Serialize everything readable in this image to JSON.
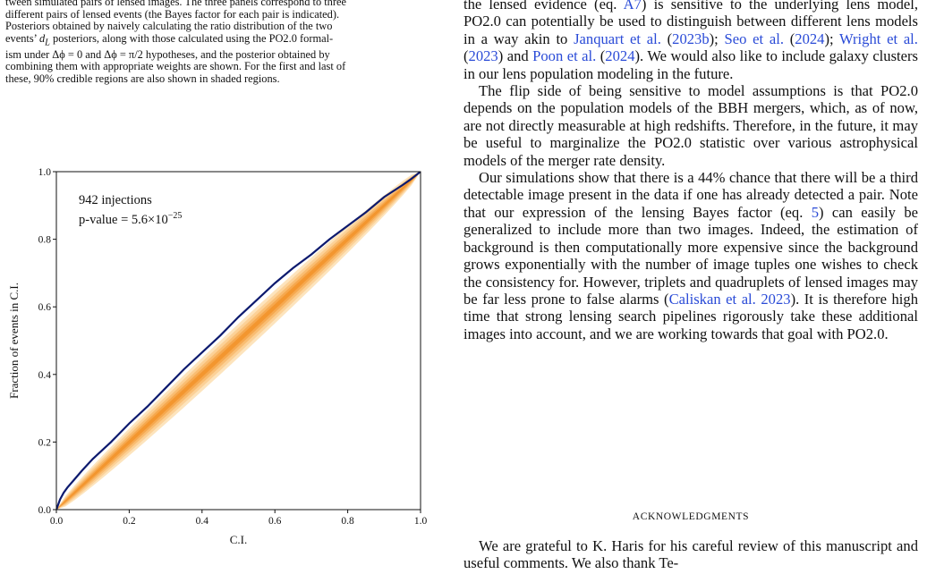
{
  "caption": {
    "line1": "tween simulated pairs of lensed images. The three panels correspond to three",
    "line2": "different pairs of lensed events (the Bayes factor for each pair is indicated).",
    "line3": "Posteriors obtained by naively calculating the ratio distribution of the two",
    "line4a": "events’ ",
    "line4_dl": "d",
    "line4_sub": "L",
    "line4b": " posteriors, along with those calculated using the PO2.0 formal-",
    "line5": "ism under Δϕ = 0 and Δϕ = π/2 hypotheses, and the posterior obtained by",
    "line6": "combining them with appropriate weights are shown. For the first and last of",
    "line7": "these, 90% credible regions are also shown in shaded regions."
  },
  "right_column": {
    "p1_a": "the lensed evidence (eq. ",
    "p1_ref": "A7",
    "p1_b": ") is sensitive to the underlying lens model, PO2.0 can potentially be used to distinguish between different lens models in a way akin to ",
    "p1_c1": "Janquart et al.",
    "p1_c1y": "2023b",
    "p1_c2": "Seo et al.",
    "p1_c2y": "2024",
    "p1_c3": "Wright et al.",
    "p1_c3y": "2023",
    "p1_and": "and",
    "p1_c4": "Poon et al.",
    "p1_c4y": "2024",
    "p1_end": ". We would also like to include galaxy clusters in our lens population modeling in the future.",
    "p2": "The flip side of being sensitive to model assumptions is that PO2.0 depends on the population models of the BBH mergers, which, as of now, are not directly measurable at high redshifts. Therefore, in the future, it may be useful to marginalize the PO2.0 statistic over various astrophysical models of the merger rate density.",
    "p3_a": "Our simulations show that there is a 44% chance that there will be a third detectable image present in the data if one has already detected a pair. Note that our expression of the lensing Bayes factor (eq. ",
    "p3_ref": "5",
    "p3_b": ") can easily be generalized to include more than two images. Indeed, the estimation of background is then computationally more expensive since the background grows exponentially with the number of image tuples one wishes to check the consistency for. However, triplets and quadruplets of lensed images may be far less prone to false alarms (",
    "p3_c": "Caliskan et al. 2023",
    "p3_d": "). It is therefore high time that strong lensing search pipelines rigorously take these additional images into account, and we are working towards that goal with PO2.0."
  },
  "acknowledgments": {
    "heading": "ACKNOWLEDGMENTS",
    "text": "We are grateful to K. Haris for his careful review of this manuscript and useful comments. We also thank Te-"
  },
  "chart_data": {
    "type": "line",
    "xlabel": "C.I.",
    "ylabel": "Fraction of events in C.I.",
    "xlim": [
      0.0,
      1.0
    ],
    "ylim": [
      0.0,
      1.0
    ],
    "xticks": [
      "0.0",
      "0.2",
      "0.4",
      "0.6",
      "0.8",
      "1.0"
    ],
    "yticks": [
      "0.0",
      "0.2",
      "0.4",
      "0.6",
      "0.8",
      "1.0"
    ],
    "annotation_injections": "942 injections",
    "annotation_pvalue_prefix": "p-value = 5.6",
    "annotation_pvalue_times": "×",
    "annotation_pvalue_base": "10",
    "annotation_pvalue_exp": "−25",
    "grid": false,
    "series_color": "#0d1a6e",
    "band_colors": [
      "#fde4bd",
      "#fcd197",
      "#f9bd72",
      "#f6a84e",
      "#f3962f"
    ],
    "band_halfwidths": [
      0.05,
      0.038,
      0.027,
      0.017,
      0.008
    ],
    "series": [
      {
        "x": [
          0.0,
          0.01,
          0.02,
          0.03,
          0.05,
          0.07,
          0.1,
          0.13,
          0.15,
          0.2,
          0.25,
          0.3,
          0.35,
          0.4,
          0.45,
          0.5,
          0.55,
          0.6,
          0.65,
          0.7,
          0.75,
          0.8,
          0.85,
          0.9,
          0.95,
          0.97,
          1.0
        ],
        "y": [
          0.0,
          0.03,
          0.05,
          0.065,
          0.09,
          0.115,
          0.15,
          0.18,
          0.2,
          0.255,
          0.305,
          0.36,
          0.415,
          0.465,
          0.515,
          0.57,
          0.62,
          0.67,
          0.715,
          0.755,
          0.8,
          0.84,
          0.88,
          0.925,
          0.96,
          0.975,
          1.0
        ]
      }
    ]
  }
}
